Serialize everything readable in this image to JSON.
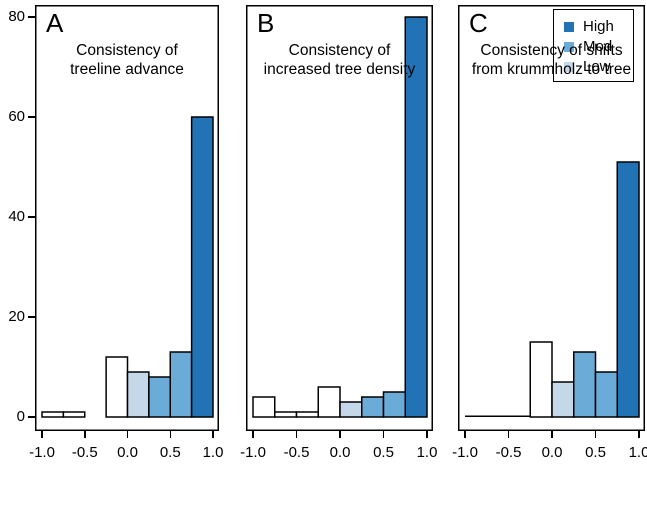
{
  "figure": {
    "background": "#ffffff"
  },
  "colors": {
    "none": "#ffffff",
    "low": "#c4d8e9",
    "mod": "#6aabd7",
    "high": "#2272b6",
    "stroke": "#000000"
  },
  "y_axis": {
    "ticks": [
      0,
      20,
      40,
      60,
      80
    ],
    "ylim": [
      0,
      85
    ]
  },
  "x_axis": {
    "tick_values": [
      -1.0,
      -0.5,
      0.0,
      0.5,
      1.0
    ],
    "tick_labels": [
      "-1.0",
      "-0.5",
      "0.0",
      "0.5",
      "1.0"
    ],
    "range": [
      -1.0,
      1.0
    ]
  },
  "legend": {
    "position": "top-right-panel-C",
    "items": [
      {
        "label": "High",
        "key": "high"
      },
      {
        "label": "Mod",
        "key": "mod"
      },
      {
        "label": "Low",
        "key": "low"
      }
    ]
  },
  "chart_data": [
    {
      "type": "bar",
      "panel_label": "A",
      "xlabel_lines": [
        "Consistency of",
        "treeline advance"
      ],
      "bin_start": -1.0,
      "bin_width": 0.25,
      "bin_edges": [
        -1.0,
        -0.75,
        -0.5,
        -0.25,
        0.0,
        0.25,
        0.5,
        0.75,
        1.0
      ],
      "values": [
        1,
        1,
        0,
        12,
        9,
        8,
        13,
        60
      ],
      "bin_categories": [
        "none",
        "none",
        "none",
        "none",
        "low",
        "mod",
        "mod",
        "high"
      ],
      "zero_line": null
    },
    {
      "type": "bar",
      "panel_label": "B",
      "xlabel_lines": [
        "Consistency of",
        "increased tree density"
      ],
      "bin_start": -1.0,
      "bin_width": 0.25,
      "bin_edges": [
        -1.0,
        -0.75,
        -0.5,
        -0.25,
        0.0,
        0.25,
        0.5,
        0.75,
        1.0
      ],
      "values": [
        4,
        1,
        1,
        6,
        3,
        4,
        5,
        80
      ],
      "bin_categories": [
        "none",
        "none",
        "none",
        "none",
        "low",
        "mod",
        "mod",
        "high"
      ],
      "zero_line": null
    },
    {
      "type": "bar",
      "panel_label": "C",
      "xlabel_lines": [
        "Consistency of shifts",
        "from krummholz to tree"
      ],
      "bin_start": -1.0,
      "bin_width": 0.25,
      "bin_edges": [
        -1.0,
        -0.75,
        -0.5,
        -0.25,
        0.0,
        0.25,
        0.5,
        0.75,
        1.0
      ],
      "values": [
        0,
        0,
        0,
        15,
        7,
        13,
        9,
        51
      ],
      "bin_categories": [
        "none",
        "none",
        "none",
        "none",
        "low",
        "mod",
        "mod",
        "high"
      ],
      "zero_line": [
        -1.0,
        -0.25
      ]
    }
  ]
}
